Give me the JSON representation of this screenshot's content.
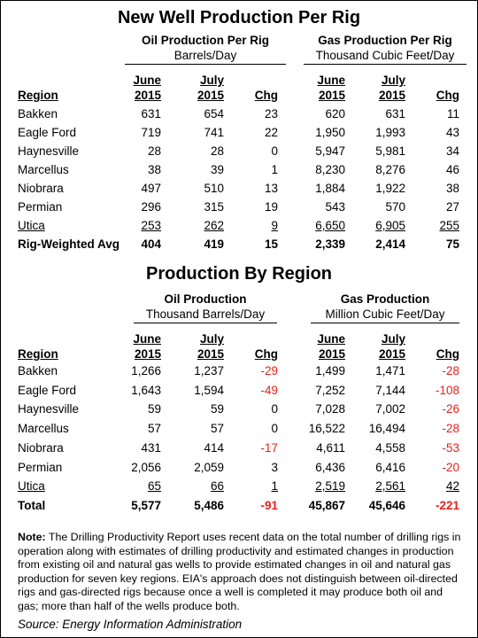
{
  "section1": {
    "title": "New Well Production Per Rig",
    "oil_header": {
      "line1": "Oil Production Per Rig",
      "line2": "Barrels/Day"
    },
    "gas_header": {
      "line1": "Gas Production Per Rig",
      "line2": "Thousand Cubic Feet/Day"
    },
    "columns": {
      "region": "Region",
      "june": [
        "June",
        "2015"
      ],
      "july": [
        "July",
        "2015"
      ],
      "chg": "Chg"
    },
    "rows": [
      {
        "region": "Bakken",
        "oil_june": "631",
        "oil_july": "654",
        "oil_chg": "23",
        "gas_june": "620",
        "gas_july": "631",
        "gas_chg": "11"
      },
      {
        "region": "Eagle Ford",
        "oil_june": "719",
        "oil_july": "741",
        "oil_chg": "22",
        "gas_june": "1,950",
        "gas_july": "1,993",
        "gas_chg": "43"
      },
      {
        "region": "Haynesville",
        "oil_june": "28",
        "oil_july": "28",
        "oil_chg": "0",
        "gas_june": "5,947",
        "gas_july": "5,981",
        "gas_chg": "34"
      },
      {
        "region": "Marcellus",
        "oil_june": "38",
        "oil_july": "39",
        "oil_chg": "1",
        "gas_june": "8,230",
        "gas_july": "8,276",
        "gas_chg": "46"
      },
      {
        "region": "Niobrara",
        "oil_june": "497",
        "oil_july": "510",
        "oil_chg": "13",
        "gas_june": "1,884",
        "gas_july": "1,922",
        "gas_chg": "38"
      },
      {
        "region": "Permian",
        "oil_june": "296",
        "oil_july": "315",
        "oil_chg": "19",
        "gas_june": "543",
        "gas_july": "570",
        "gas_chg": "27"
      },
      {
        "region": "Utica",
        "oil_june": "253",
        "oil_july": "262",
        "oil_chg": "9",
        "gas_june": "6,650",
        "gas_july": "6,905",
        "gas_chg": "255"
      }
    ],
    "total": {
      "region": "Rig-Weighted Avg",
      "oil_june": "404",
      "oil_july": "419",
      "oil_chg": "15",
      "gas_june": "2,339",
      "gas_july": "2,414",
      "gas_chg": "75"
    }
  },
  "section2": {
    "title": "Production By Region",
    "oil_header": {
      "line1": "Oil Production",
      "line2": "Thousand Barrels/Day"
    },
    "gas_header": {
      "line1": "Gas Production",
      "line2": "Million Cubic Feet/Day"
    },
    "columns": {
      "region": "Region",
      "june": [
        "June",
        "2015"
      ],
      "july": [
        "July",
        "2015"
      ],
      "chg": "Chg"
    },
    "rows": [
      {
        "region": "Bakken",
        "oil_june": "1,266",
        "oil_july": "1,237",
        "oil_chg": "-29",
        "gas_june": "1,499",
        "gas_july": "1,471",
        "gas_chg": "-28"
      },
      {
        "region": "Eagle Ford",
        "oil_june": "1,643",
        "oil_july": "1,594",
        "oil_chg": "-49",
        "gas_june": "7,252",
        "gas_july": "7,144",
        "gas_chg": "-108"
      },
      {
        "region": "Haynesville",
        "oil_june": "59",
        "oil_july": "59",
        "oil_chg": "0",
        "gas_june": "7,028",
        "gas_july": "7,002",
        "gas_chg": "-26"
      },
      {
        "region": "Marcellus",
        "oil_june": "57",
        "oil_july": "57",
        "oil_chg": "0",
        "gas_june": "16,522",
        "gas_july": "16,494",
        "gas_chg": "-28"
      },
      {
        "region": "Niobrara",
        "oil_june": "431",
        "oil_july": "414",
        "oil_chg": "-17",
        "gas_june": "4,611",
        "gas_july": "4,558",
        "gas_chg": "-53"
      },
      {
        "region": "Permian",
        "oil_june": "2,056",
        "oil_july": "2,059",
        "oil_chg": "3",
        "gas_june": "6,436",
        "gas_july": "6,416",
        "gas_chg": "-20"
      },
      {
        "region": "Utica",
        "oil_june": "65",
        "oil_july": "66",
        "oil_chg": "1",
        "gas_june": "2,519",
        "gas_july": "2,561",
        "gas_chg": "42"
      }
    ],
    "total": {
      "region": "Total",
      "oil_june": "5,577",
      "oil_july": "5,486",
      "oil_chg": "-91",
      "gas_june": "45,867",
      "gas_july": "45,646",
      "gas_chg": "-221"
    }
  },
  "note": {
    "label": "Note:",
    "text": " The Drilling Productivity Report uses recent data on the total number of drilling rigs in operation along with estimates of drilling productivity and estimated changes in production from existing oil and natural gas wells to provide estimated changes in oil and natural gas production for seven key regions. EIA's approach does not distinguish between oil-directed rigs and gas-directed rigs because once a well is completed it may produce both oil and gas; more than half of the wells produce both."
  },
  "source": "Source: Energy Information Administration",
  "colors": {
    "negative": "#e8211c",
    "text": "#000000"
  }
}
